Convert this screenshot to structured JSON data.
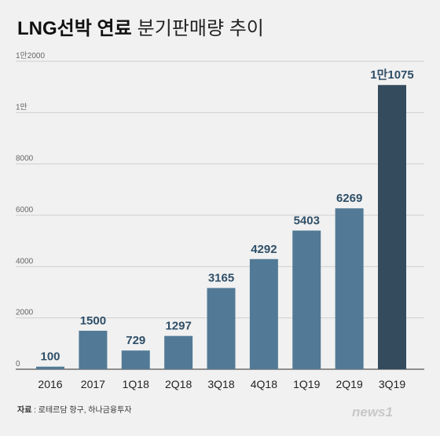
{
  "chart_data": {
    "type": "bar",
    "title_bold": "LNG선박 연료",
    "title_regular": "분기판매량 추이",
    "categories": [
      "2016",
      "2017",
      "1Q18",
      "2Q18",
      "3Q18",
      "4Q18",
      "1Q19",
      "2Q19",
      "3Q19"
    ],
    "values": [
      100,
      1500,
      729,
      1297,
      3165,
      4292,
      5403,
      6269,
      11075
    ],
    "value_labels": [
      "100",
      "1500",
      "729",
      "1297",
      "3165",
      "4292",
      "5403",
      "6269",
      "1만1075"
    ],
    "yticks": [
      0,
      2000,
      4000,
      6000,
      8000,
      10000,
      12000
    ],
    "ytick_labels": [
      "0",
      "2000",
      "4000",
      "6000",
      "8000",
      "1만",
      "1만2000"
    ],
    "ylim": [
      0,
      12000
    ],
    "grid": true,
    "colors": {
      "bar": "#527a96",
      "bar_highlight": "#344b5e",
      "label": "#2f4f68"
    }
  },
  "source_label": "자료",
  "source_text": " : 로테르담 항구, 하나금융투자",
  "watermark": "news1"
}
